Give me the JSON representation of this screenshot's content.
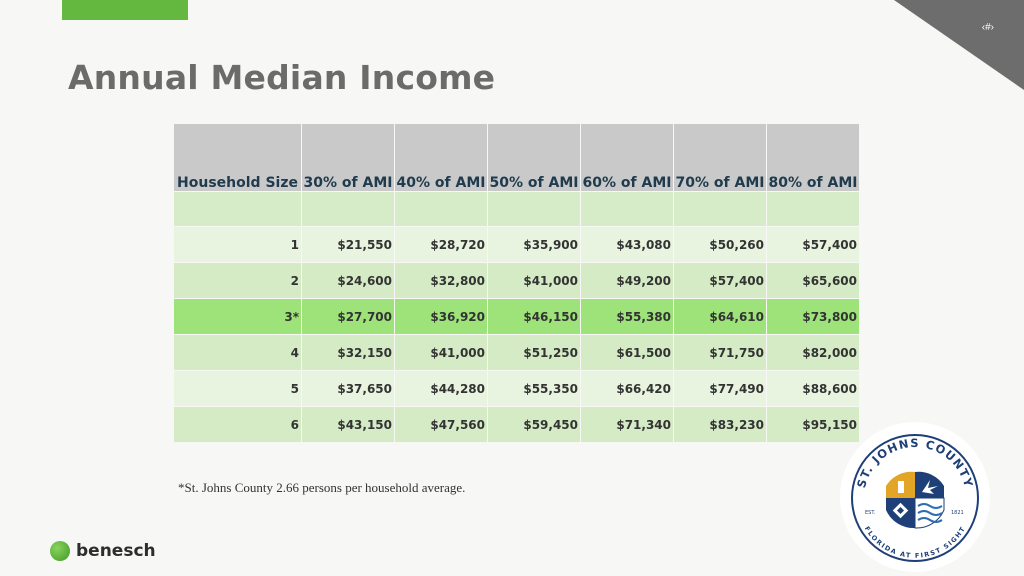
{
  "slide": {
    "number": "‹#›",
    "title": "Annual Median Income",
    "footnote": "*St. Johns County 2.66 persons per household average."
  },
  "table": {
    "headers": [
      "Household Size",
      "30% of AMI",
      "40% of AMI",
      "50% of AMI",
      "60% of AMI",
      "70% of AMI",
      "80% of AMI"
    ],
    "rows": [
      {
        "size": "1",
        "values": [
          "$21,550",
          "$28,720",
          "$35,900",
          "$43,080",
          "$50,260",
          "$57,400"
        ]
      },
      {
        "size": "2",
        "values": [
          "$24,600",
          "$32,800",
          "$41,000",
          "$49,200",
          "$57,400",
          "$65,600"
        ]
      },
      {
        "size": "3*",
        "values": [
          "$27,700",
          "$36,920",
          "$46,150",
          "$55,380",
          "$64,610",
          "$73,800"
        ]
      },
      {
        "size": "4",
        "values": [
          "$32,150",
          "$41,000",
          "$51,250",
          "$61,500",
          "$71,750",
          "$82,000"
        ]
      },
      {
        "size": "5",
        "values": [
          "$37,650",
          "$44,280",
          "$55,350",
          "$66,420",
          "$77,490",
          "$88,600"
        ]
      },
      {
        "size": "6",
        "values": [
          "$43,150",
          "$47,560",
          "$59,450",
          "$71,340",
          "$83,230",
          "$95,150"
        ]
      }
    ]
  },
  "brand": {
    "name": "benesch"
  },
  "seal": {
    "top_text": "ST. JOHNS COUNTY",
    "bottom_text": "FLORIDA AT FIRST SIGHT",
    "est": "EST.",
    "year": "1821"
  },
  "colors": {
    "accent_green": "#64b83f",
    "highlight_row": "#9ee27a",
    "header_gray": "#c9c9c9",
    "seal_navy": "#1e3f78",
    "seal_gold": "#e2a526"
  }
}
